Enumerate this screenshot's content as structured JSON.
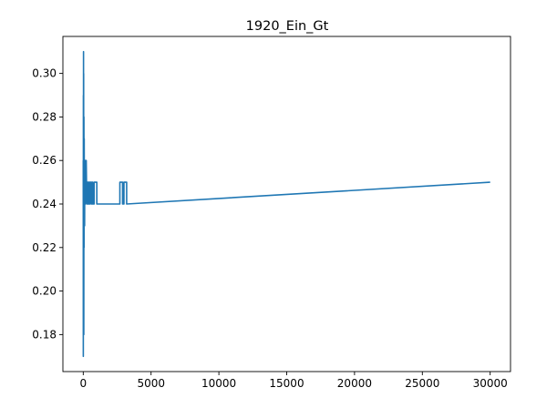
{
  "chart_data": {
    "type": "line",
    "title": "1920_Ein_Gt",
    "xlabel": "",
    "ylabel": "",
    "xlim": [
      -1500,
      31500
    ],
    "ylim": [
      0.163,
      0.317
    ],
    "x_ticks": [
      0,
      5000,
      10000,
      15000,
      20000,
      25000,
      30000
    ],
    "y_ticks": [
      0.18,
      0.2,
      0.22,
      0.24,
      0.26,
      0.28,
      0.3
    ],
    "grid": false,
    "legend": "none",
    "series": [
      {
        "color": "#1f77b4",
        "x": [
          0,
          5,
          10,
          15,
          20,
          25,
          30,
          40,
          50,
          60,
          70,
          80,
          90,
          100,
          110,
          120,
          130,
          140,
          150,
          160,
          170,
          180,
          200,
          220,
          240,
          260,
          280,
          300,
          350,
          350,
          400,
          400,
          450,
          450,
          500,
          500,
          600,
          600,
          650,
          650,
          700,
          700,
          800,
          800,
          1000,
          1000,
          1050,
          1050,
          2700,
          2700,
          2900,
          2900,
          3000,
          3000,
          3200,
          3200,
          30000
        ],
        "y": [
          0.26,
          0.17,
          0.29,
          0.2,
          0.31,
          0.23,
          0.3,
          0.18,
          0.28,
          0.22,
          0.27,
          0.24,
          0.26,
          0.23,
          0.25,
          0.26,
          0.24,
          0.25,
          0.26,
          0.25,
          0.24,
          0.26,
          0.25,
          0.26,
          0.25,
          0.25,
          0.24,
          0.25,
          0.25,
          0.24,
          0.24,
          0.25,
          0.25,
          0.24,
          0.24,
          0.25,
          0.25,
          0.24,
          0.24,
          0.25,
          0.25,
          0.24,
          0.24,
          0.25,
          0.25,
          0.24,
          0.24,
          0.24,
          0.24,
          0.25,
          0.25,
          0.24,
          0.24,
          0.25,
          0.25,
          0.24,
          0.25
        ]
      }
    ]
  }
}
